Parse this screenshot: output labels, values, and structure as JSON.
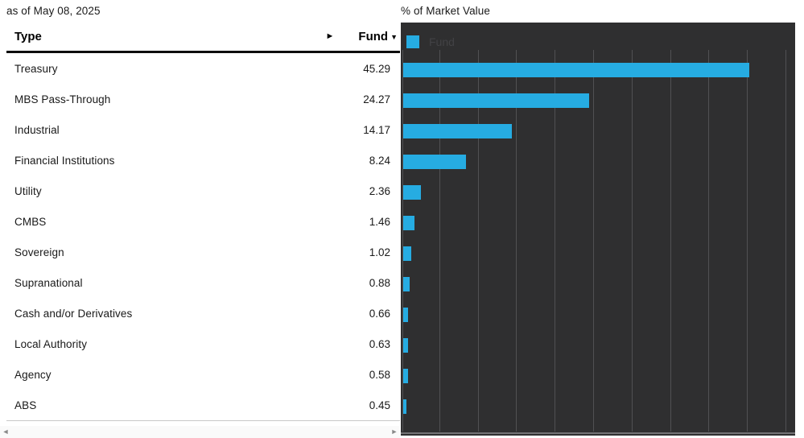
{
  "as_of": "as of May 08, 2025",
  "table": {
    "col_type": "Type",
    "col_fund": "Fund",
    "scroll_right_icon": "►",
    "sort_desc_icon": "▼"
  },
  "scrollbar": {
    "left_icon": "◄",
    "right_icon": "►"
  },
  "chart": {
    "title": "% of Market Value",
    "legend_label": "Fund"
  },
  "colors": {
    "bar_accent": "#26ace2",
    "chart_background": "#2f2f30",
    "gridline": "#515153",
    "axis_line": "#747476",
    "legend_text": "#424245"
  },
  "chart_data": {
    "type": "bar",
    "orientation": "horizontal",
    "title": "% of Market Value",
    "series_name": "Fund",
    "categories": [
      "Treasury",
      "MBS Pass-Through",
      "Industrial",
      "Financial Institutions",
      "Utility",
      "CMBS",
      "Sovereign",
      "Supranational",
      "Cash and/or Derivatives",
      "Local Authority",
      "Agency",
      "ABS"
    ],
    "values": [
      45.29,
      24.27,
      14.17,
      8.24,
      2.36,
      1.46,
      1.02,
      0.88,
      0.66,
      0.63,
      0.58,
      0.45
    ],
    "xlabel": "",
    "ylabel": "",
    "xlim": [
      0,
      51.25
    ],
    "gridline_interval": 5,
    "grid": true,
    "legend_position": "top-left"
  }
}
